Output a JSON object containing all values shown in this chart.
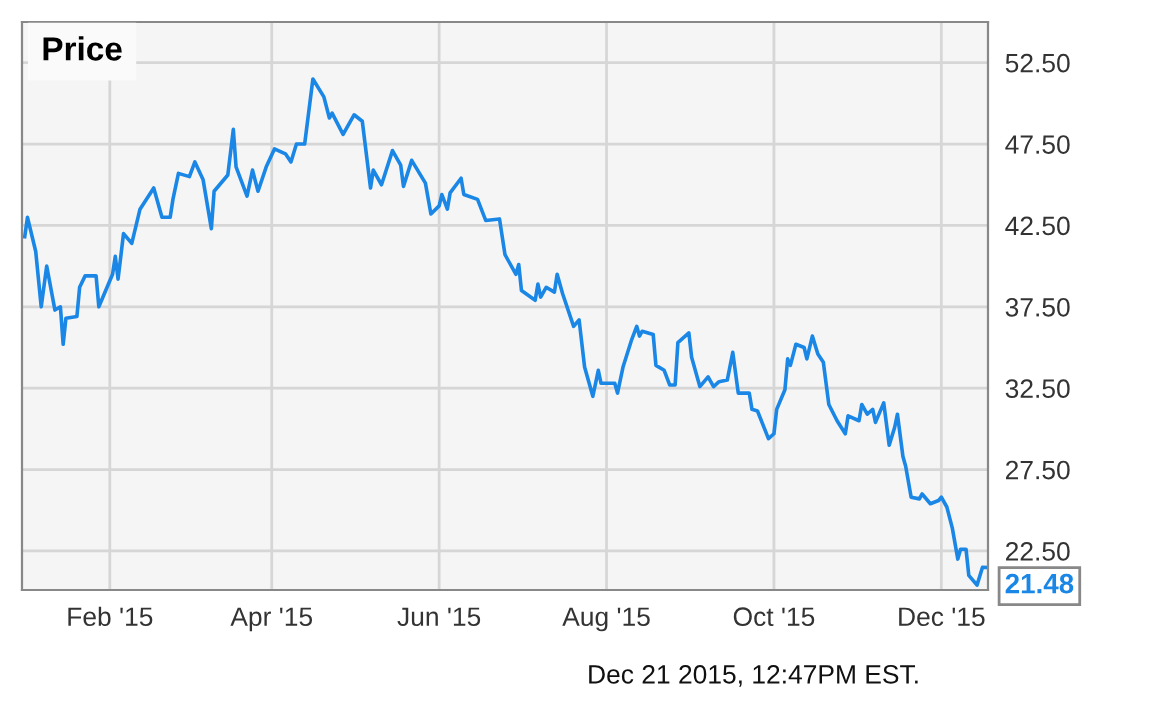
{
  "chart_data": {
    "type": "line",
    "title": "Price",
    "x": [
      "2015-01-01",
      "2015-01-02",
      "2015-01-05",
      "2015-01-07",
      "2015-01-09",
      "2015-01-12",
      "2015-01-14",
      "2015-01-15",
      "2015-01-16",
      "2015-01-20",
      "2015-01-21",
      "2015-01-23",
      "2015-01-27",
      "2015-01-28",
      "2015-02-02",
      "2015-02-03",
      "2015-02-04",
      "2015-02-06",
      "2015-02-09",
      "2015-02-12",
      "2015-02-17",
      "2015-02-20",
      "2015-02-23",
      "2015-02-24",
      "2015-02-26",
      "2015-03-02",
      "2015-03-04",
      "2015-03-07",
      "2015-03-10",
      "2015-03-11",
      "2015-03-16",
      "2015-03-18",
      "2015-03-19",
      "2015-03-23",
      "2015-03-25",
      "2015-03-27",
      "2015-03-30",
      "2015-04-02",
      "2015-04-06",
      "2015-04-08",
      "2015-04-10",
      "2015-04-13",
      "2015-04-16",
      "2015-04-20",
      "2015-04-22",
      "2015-04-23",
      "2015-04-27",
      "2015-05-01",
      "2015-05-04",
      "2015-05-07",
      "2015-05-08",
      "2015-05-11",
      "2015-05-15",
      "2015-05-18",
      "2015-05-19",
      "2015-05-22",
      "2015-05-27",
      "2015-05-29",
      "2015-06-01",
      "2015-06-02",
      "2015-06-04",
      "2015-06-05",
      "2015-06-09",
      "2015-06-10",
      "2015-06-15",
      "2015-06-18",
      "2015-06-23",
      "2015-06-25",
      "2015-06-29",
      "2015-06-30",
      "2015-07-01",
      "2015-07-06",
      "2015-07-07",
      "2015-07-08",
      "2015-07-10",
      "2015-07-13",
      "2015-07-14",
      "2015-07-16",
      "2015-07-20",
      "2015-07-22",
      "2015-07-24",
      "2015-07-27",
      "2015-07-29",
      "2015-07-30",
      "2015-08-04",
      "2015-08-05",
      "2015-08-07",
      "2015-08-10",
      "2015-08-12",
      "2015-08-13",
      "2015-08-14",
      "2015-08-18",
      "2015-08-19",
      "2015-08-22",
      "2015-08-24",
      "2015-08-26",
      "2015-08-27",
      "2015-08-31",
      "2015-09-01",
      "2015-09-04",
      "2015-09-07",
      "2015-09-09",
      "2015-09-11",
      "2015-09-14",
      "2015-09-16",
      "2015-09-18",
      "2015-09-22",
      "2015-09-23",
      "2015-09-25",
      "2015-09-29",
      "2015-10-01",
      "2015-10-02",
      "2015-10-05",
      "2015-10-06",
      "2015-10-07",
      "2015-10-09",
      "2015-10-12",
      "2015-10-13",
      "2015-10-15",
      "2015-10-17",
      "2015-10-19",
      "2015-10-21",
      "2015-10-24",
      "2015-10-27",
      "2015-10-28",
      "2015-11-01",
      "2015-11-02",
      "2015-11-04",
      "2015-11-06",
      "2015-11-07",
      "2015-11-10",
      "2015-11-12",
      "2015-11-14",
      "2015-11-15",
      "2015-11-17",
      "2015-11-18",
      "2015-11-20",
      "2015-11-23",
      "2015-11-24",
      "2015-11-27",
      "2015-11-30",
      "2015-12-01",
      "2015-12-03",
      "2015-12-05",
      "2015-12-07",
      "2015-12-08",
      "2015-12-10",
      "2015-12-11",
      "2015-12-14",
      "2015-12-16",
      "2015-12-18"
    ],
    "series": [
      {
        "color": "#1a87e6",
        "values": [
          41.8,
          43.0,
          40.9,
          37.5,
          40.0,
          37.3,
          37.5,
          35.2,
          36.8,
          36.9,
          38.7,
          39.4,
          39.4,
          37.5,
          39.5,
          40.6,
          39.2,
          42.0,
          41.4,
          43.5,
          44.8,
          43.0,
          43.0,
          44.1,
          45.7,
          45.5,
          46.4,
          45.3,
          42.3,
          44.6,
          45.6,
          48.4,
          46.1,
          44.3,
          45.9,
          44.6,
          46.1,
          47.2,
          46.9,
          46.4,
          47.5,
          47.5,
          51.5,
          50.4,
          49.1,
          49.4,
          48.1,
          49.3,
          48.9,
          44.8,
          45.9,
          45.0,
          47.1,
          46.2,
          44.9,
          46.5,
          45.1,
          43.2,
          43.7,
          44.4,
          43.5,
          44.5,
          45.4,
          44.4,
          44.1,
          42.8,
          42.9,
          40.7,
          39.5,
          40.1,
          38.5,
          37.9,
          38.9,
          38.1,
          38.7,
          38.4,
          39.5,
          38.3,
          36.3,
          36.7,
          33.8,
          32.0,
          33.6,
          32.8,
          32.8,
          32.2,
          33.8,
          35.4,
          36.3,
          35.7,
          36.0,
          35.8,
          33.9,
          33.6,
          32.7,
          32.7,
          35.3,
          35.9,
          34.4,
          32.6,
          33.2,
          32.6,
          32.9,
          33.0,
          34.7,
          32.2,
          32.2,
          31.2,
          31.1,
          29.4,
          29.7,
          31.2,
          32.4,
          34.3,
          33.9,
          35.2,
          35.0,
          34.3,
          35.7,
          34.6,
          34.1,
          31.5,
          30.5,
          29.7,
          30.8,
          30.5,
          31.5,
          30.9,
          31.2,
          30.4,
          31.6,
          29.0,
          30.1,
          30.9,
          28.3,
          27.7,
          25.8,
          25.7,
          26.0,
          25.4,
          25.6,
          25.8,
          25.2,
          23.9,
          22.0,
          22.6,
          22.6,
          21.0,
          20.4,
          21.5,
          21.48
        ]
      }
    ],
    "xlim": [
      "2014-12-31",
      "2015-12-18"
    ],
    "xticks": [
      {
        "value": "2015-02-01",
        "label": "Feb '15"
      },
      {
        "value": "2015-04-01",
        "label": "Apr '15"
      },
      {
        "value": "2015-06-01",
        "label": "Jun '15"
      },
      {
        "value": "2015-08-01",
        "label": "Aug '15"
      },
      {
        "value": "2015-10-01",
        "label": "Oct '15"
      },
      {
        "value": "2015-12-01",
        "label": "Dec '15"
      }
    ],
    "ylim": [
      20.1,
      55
    ],
    "yticks": [
      {
        "value": 22.5,
        "label": "22.50"
      },
      {
        "value": 27.5,
        "label": "27.50"
      },
      {
        "value": 32.5,
        "label": "32.50"
      },
      {
        "value": 37.5,
        "label": "37.50"
      },
      {
        "value": 42.5,
        "label": "42.50"
      },
      {
        "value": 47.5,
        "label": "47.50"
      },
      {
        "value": 52.5,
        "label": "52.50"
      }
    ],
    "grid": true,
    "annotations": [
      {
        "text": "21.48",
        "x": "2015-12-18",
        "y": 21.48
      },
      "Dec 21 2015, 12:47PM EST."
    ]
  }
}
